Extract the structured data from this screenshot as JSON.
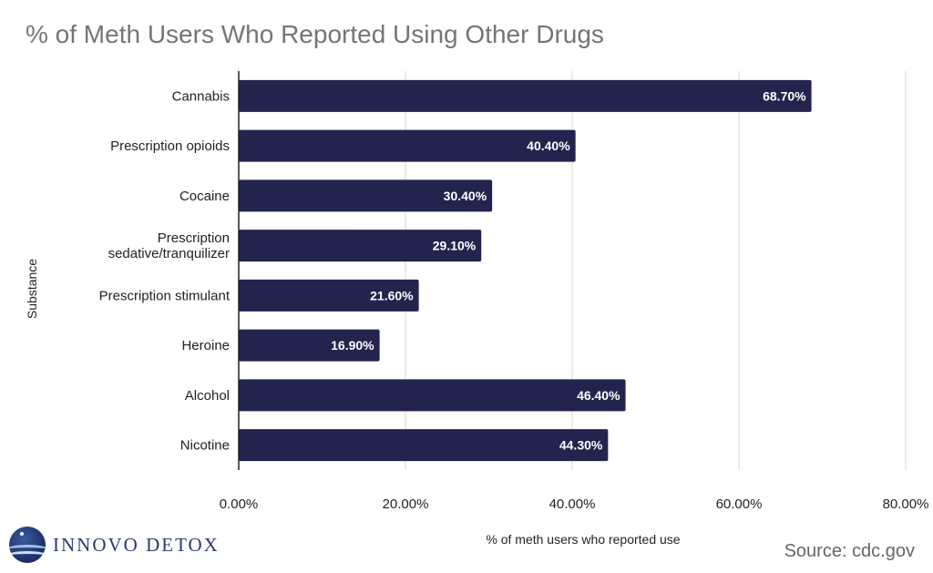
{
  "title": "% of Meth Users Who Reported Using Other Drugs",
  "source": "Source: cdc.gov",
  "logo": {
    "text": "INNOVO DETOX",
    "icon": "globe-wave-icon"
  },
  "colors": {
    "bar": "#23244e",
    "grid": "#d9d9d9",
    "axis": "#222222"
  },
  "chart_data": {
    "type": "bar",
    "orientation": "horizontal",
    "categories": [
      "Cannabis",
      "Prescription opioids",
      "Cocaine",
      "Prescription sedative/tranquilizer",
      "Prescription stimulant",
      "Heroine",
      "Alcohol",
      "Nicotine"
    ],
    "category_lines": [
      [
        "Cannabis"
      ],
      [
        "Prescription opioids"
      ],
      [
        "Cocaine"
      ],
      [
        "Prescription",
        "sedative/tranquilizer"
      ],
      [
        "Prescription stimulant"
      ],
      [
        "Heroine"
      ],
      [
        "Alcohol"
      ],
      [
        "Nicotine"
      ]
    ],
    "values": [
      68.7,
      40.4,
      30.4,
      29.1,
      21.6,
      16.9,
      46.4,
      44.3
    ],
    "data_labels": [
      "68.70%",
      "40.40%",
      "30.40%",
      "29.10%",
      "21.60%",
      "16.90%",
      "46.40%",
      "44.30%"
    ],
    "xlim": [
      0,
      80
    ],
    "xticks": [
      0,
      20,
      40,
      60,
      80
    ],
    "xtick_labels": [
      "0.00%",
      "20.00%",
      "40.00%",
      "60.00%",
      "80.00%"
    ],
    "xlabel": "% of meth users who reported use",
    "ylabel": "Substance",
    "grid": true,
    "legend": "none"
  }
}
